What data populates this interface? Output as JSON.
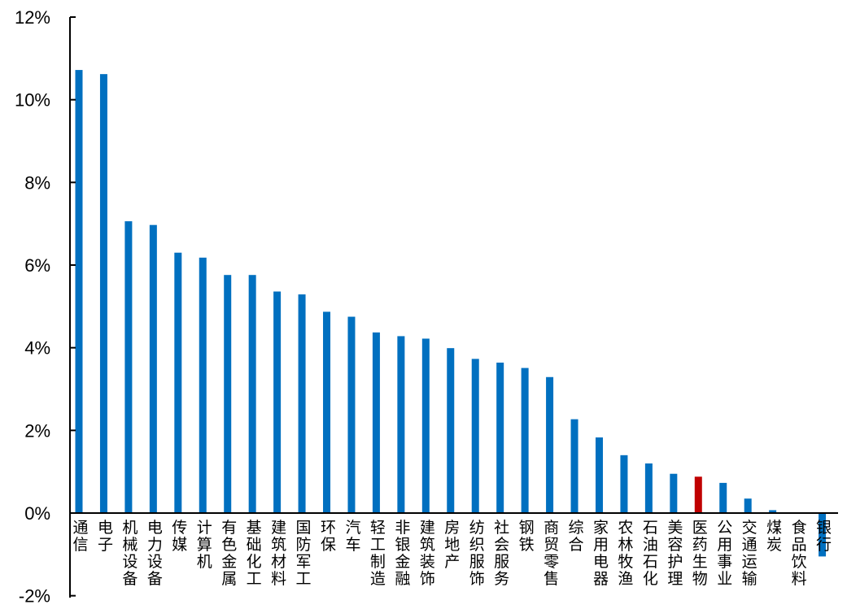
{
  "colors": {
    "bar": "#0070c0",
    "highlight": "#c00000",
    "axis": "#000000",
    "background": "#ffffff"
  },
  "chart_data": {
    "type": "bar",
    "title": "",
    "xlabel": "",
    "ylabel": "",
    "ylim": [
      -2,
      12
    ],
    "yticks": [
      -2,
      0,
      2,
      4,
      6,
      8,
      10,
      12
    ],
    "ytick_labels": [
      "-2%",
      "0%",
      "2%",
      "4%",
      "6%",
      "8%",
      "10%",
      "12%"
    ],
    "grid": false,
    "legend": "none",
    "highlight_category": "医药生物",
    "categories": [
      "通信",
      "电子",
      "机械设备",
      "电力设备",
      "传媒",
      "计算机",
      "有色金属",
      "基础化工",
      "建筑材料",
      "国防军工",
      "环保",
      "汽车",
      "轻工制造",
      "非银金融",
      "建筑装饰",
      "房地产",
      "纺织服饰",
      "社会服务",
      "钢铁",
      "商贸零售",
      "综合",
      "家用电器",
      "农林牧渔",
      "石油石化",
      "美容护理",
      "医药生物",
      "公用事业",
      "交通运输",
      "煤炭",
      "食品饮料",
      "银行"
    ],
    "values": [
      10.72,
      10.62,
      7.06,
      6.97,
      6.3,
      6.18,
      5.76,
      5.76,
      5.36,
      5.29,
      4.87,
      4.75,
      4.37,
      4.28,
      4.22,
      3.99,
      3.73,
      3.64,
      3.51,
      3.29,
      2.27,
      1.83,
      1.4,
      1.2,
      0.95,
      0.88,
      0.73,
      0.35,
      0.07,
      0.0,
      -1.05
    ]
  }
}
